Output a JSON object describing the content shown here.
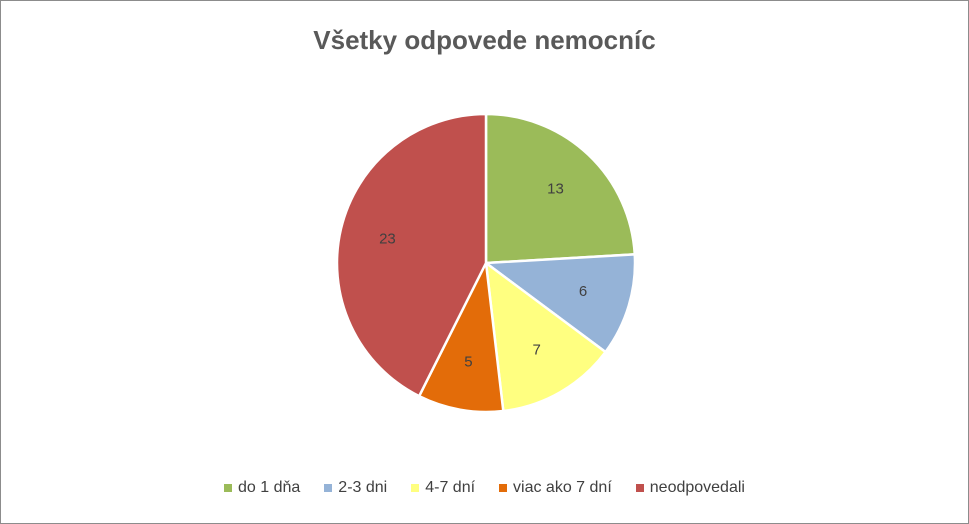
{
  "chart_data": {
    "type": "pie",
    "title": "Všetky odpovede nemocníc",
    "categories": [
      "do 1 dňa",
      "2-3 dni",
      "4-7 dní",
      "viac ako 7 dní",
      "neodpovedali"
    ],
    "values": [
      13,
      6,
      7,
      5,
      23
    ],
    "colors": [
      "#9bbb59",
      "#95b3d7",
      "#ffff80",
      "#e36c09",
      "#c0504d"
    ],
    "data_labels": [
      "13",
      "6",
      "7",
      "5",
      "23"
    ],
    "start_angle_deg": 0,
    "direction": "clockwise",
    "legend_position": "bottom"
  }
}
